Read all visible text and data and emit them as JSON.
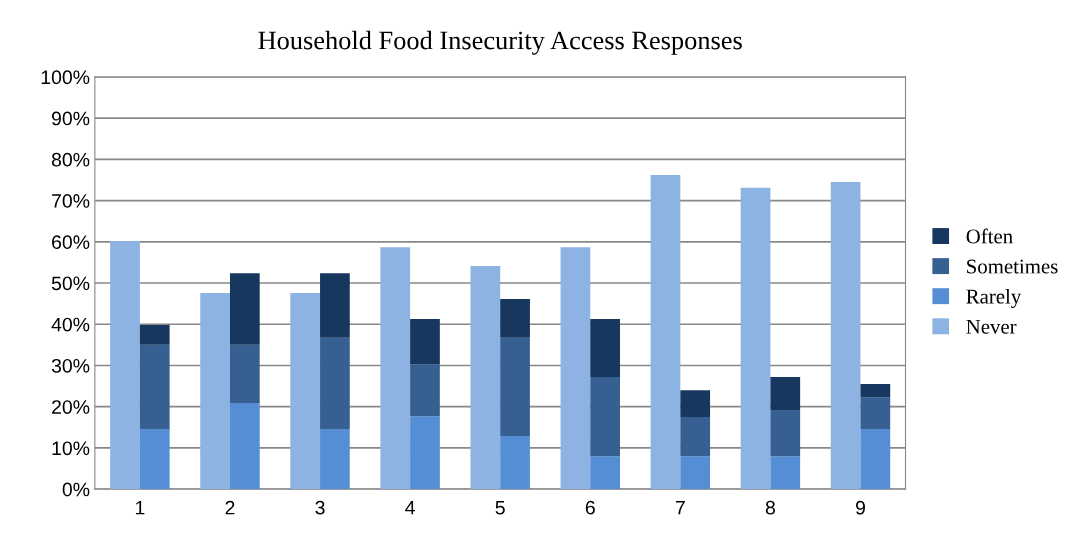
{
  "chart_data": {
    "type": "bar",
    "title": "Household Food Insecurity Access Responses",
    "categories": [
      "1",
      "2",
      "3",
      "4",
      "5",
      "6",
      "7",
      "8",
      "9"
    ],
    "series": [
      {
        "name": "Never",
        "color": "#8db3e2",
        "values": [
          60.2,
          47.6,
          47.6,
          58.7,
          54.1,
          58.7,
          76.2,
          73.1,
          74.5
        ]
      },
      {
        "name": "Rarely",
        "color": "#558ed5",
        "values": [
          14.6,
          20.9,
          14.6,
          17.7,
          12.9,
          8.0,
          8.0,
          8.0,
          14.6
        ],
        "base": [
          0,
          0,
          0,
          0,
          0,
          0,
          0,
          0,
          0
        ]
      },
      {
        "name": "Sometimes",
        "color": "#376092",
        "values": [
          20.4,
          14.1,
          22.1,
          12.6,
          23.8,
          19.2,
          9.5,
          11.2,
          7.7
        ],
        "base": [
          14.6,
          20.9,
          14.6,
          17.7,
          12.9,
          8.0,
          8.0,
          8.0,
          14.6
        ]
      },
      {
        "name": "Often",
        "color": "#17375e",
        "values": [
          4.8,
          17.4,
          15.7,
          11.0,
          9.4,
          14.1,
          6.5,
          8.0,
          3.2
        ],
        "base": [
          35.0,
          35.0,
          36.7,
          30.3,
          36.7,
          27.2,
          17.5,
          19.2,
          22.3
        ]
      }
    ],
    "ylim": [
      0,
      100
    ],
    "yticks": [
      {
        "value": 0,
        "label": "0%"
      },
      {
        "value": 10,
        "label": "10%"
      },
      {
        "value": 20,
        "label": "20%"
      },
      {
        "value": 30,
        "label": "30%"
      },
      {
        "value": 40,
        "label": "40%"
      },
      {
        "value": 50,
        "label": "50%"
      },
      {
        "value": 60,
        "label": "60%"
      },
      {
        "value": 70,
        "label": "70%"
      },
      {
        "value": 80,
        "label": "80%"
      },
      {
        "value": 90,
        "label": "90%"
      },
      {
        "value": 100,
        "label": "100%"
      }
    ],
    "grid": "y",
    "legend": "right"
  }
}
